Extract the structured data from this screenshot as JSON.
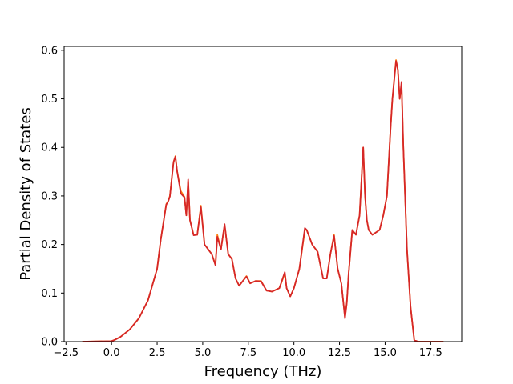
{
  "chart_data": {
    "type": "line",
    "title": "",
    "xlabel": "Frequency (THz)",
    "ylabel": "Partial Density of States",
    "xlim": [
      -2.6,
      19.2
    ],
    "ylim": [
      0.0,
      0.608
    ],
    "xticks": [
      -2.5,
      0.0,
      2.5,
      5.0,
      7.5,
      10.0,
      12.5,
      15.0,
      17.5
    ],
    "xtick_labels": [
      "−2.5",
      "0.0",
      "2.5",
      "5.0",
      "7.5",
      "10.0",
      "12.5",
      "15.0",
      "17.5"
    ],
    "yticks": [
      0.0,
      0.1,
      0.2,
      0.3,
      0.4,
      0.5,
      0.6
    ],
    "ytick_labels": [
      "0.0",
      "0.1",
      "0.2",
      "0.3",
      "0.4",
      "0.5",
      "0.6"
    ],
    "grid": false,
    "legend": "none",
    "series": [
      {
        "color": "#ff7f0e",
        "x": [
          -1.6,
          0.0,
          0.2,
          0.5,
          1.0,
          1.5,
          2.0,
          2.5,
          2.7,
          3.0,
          3.1,
          3.2,
          3.4,
          3.5,
          3.6,
          3.8,
          4.0,
          4.1,
          4.2,
          4.3,
          4.5,
          4.7,
          4.9,
          5.1,
          5.3,
          5.5,
          5.7,
          5.8,
          6.0,
          6.2,
          6.4,
          6.6,
          6.8,
          7.0,
          7.2,
          7.4,
          7.6,
          7.9,
          8.2,
          8.5,
          8.8,
          9.2,
          9.5,
          9.6,
          9.8,
          10.0,
          10.3,
          10.6,
          10.7,
          11.0,
          11.3,
          11.6,
          11.8,
          12.0,
          12.2,
          12.4,
          12.6,
          12.8,
          12.9,
          13.0,
          13.2,
          13.4,
          13.6,
          13.8,
          13.9,
          14.0,
          14.1,
          14.3,
          14.5,
          14.7,
          14.9,
          15.1,
          15.3,
          15.4,
          15.6,
          15.7,
          15.8,
          15.9,
          16.0,
          16.2,
          16.4,
          16.6,
          16.8,
          18.2
        ],
        "y": [
          0.0,
          0.001,
          0.004,
          0.01,
          0.025,
          0.048,
          0.085,
          0.15,
          0.21,
          0.283,
          0.289,
          0.3,
          0.37,
          0.382,
          0.35,
          0.31,
          0.298,
          0.26,
          0.33,
          0.25,
          0.22,
          0.22,
          0.28,
          0.2,
          0.19,
          0.18,
          0.158,
          0.22,
          0.19,
          0.24,
          0.18,
          0.17,
          0.13,
          0.115,
          0.125,
          0.135,
          0.12,
          0.125,
          0.125,
          0.105,
          0.103,
          0.11,
          0.14,
          0.11,
          0.093,
          0.11,
          0.15,
          0.23,
          0.23,
          0.2,
          0.185,
          0.13,
          0.13,
          0.18,
          0.22,
          0.15,
          0.12,
          0.05,
          0.08,
          0.14,
          0.23,
          0.22,
          0.26,
          0.4,
          0.3,
          0.25,
          0.23,
          0.22,
          0.225,
          0.23,
          0.26,
          0.3,
          0.44,
          0.5,
          0.58,
          0.56,
          0.5,
          0.53,
          0.4,
          0.19,
          0.07,
          0.003,
          0.0,
          0.0
        ]
      },
      {
        "color": "#d62728",
        "x": [
          -1.6,
          0.0,
          0.2,
          0.5,
          1.0,
          1.5,
          2.0,
          2.5,
          2.7,
          3.0,
          3.1,
          3.2,
          3.4,
          3.5,
          3.6,
          3.8,
          4.0,
          4.1,
          4.2,
          4.3,
          4.5,
          4.7,
          4.9,
          5.1,
          5.3,
          5.5,
          5.7,
          5.8,
          6.0,
          6.2,
          6.4,
          6.6,
          6.8,
          7.0,
          7.2,
          7.4,
          7.6,
          7.9,
          8.2,
          8.5,
          8.8,
          9.2,
          9.5,
          9.6,
          9.8,
          10.0,
          10.3,
          10.6,
          10.7,
          11.0,
          11.3,
          11.6,
          11.8,
          12.0,
          12.2,
          12.4,
          12.6,
          12.8,
          12.9,
          13.0,
          13.2,
          13.4,
          13.6,
          13.8,
          13.9,
          14.0,
          14.1,
          14.3,
          14.5,
          14.7,
          14.9,
          15.1,
          15.3,
          15.4,
          15.6,
          15.7,
          15.8,
          15.9,
          16.0,
          16.2,
          16.4,
          16.6,
          16.8,
          18.2
        ],
        "y": [
          0.0,
          0.001,
          0.004,
          0.01,
          0.025,
          0.048,
          0.085,
          0.15,
          0.21,
          0.282,
          0.288,
          0.299,
          0.37,
          0.381,
          0.35,
          0.305,
          0.297,
          0.26,
          0.334,
          0.25,
          0.219,
          0.22,
          0.277,
          0.2,
          0.19,
          0.18,
          0.157,
          0.216,
          0.19,
          0.242,
          0.18,
          0.17,
          0.13,
          0.115,
          0.125,
          0.134,
          0.12,
          0.125,
          0.124,
          0.105,
          0.103,
          0.11,
          0.143,
          0.11,
          0.093,
          0.11,
          0.15,
          0.234,
          0.23,
          0.2,
          0.185,
          0.13,
          0.13,
          0.18,
          0.218,
          0.15,
          0.12,
          0.048,
          0.08,
          0.14,
          0.23,
          0.22,
          0.26,
          0.4,
          0.3,
          0.25,
          0.23,
          0.22,
          0.225,
          0.23,
          0.26,
          0.3,
          0.44,
          0.5,
          0.578,
          0.56,
          0.5,
          0.535,
          0.4,
          0.19,
          0.07,
          0.003,
          0.0,
          0.0
        ]
      }
    ]
  }
}
